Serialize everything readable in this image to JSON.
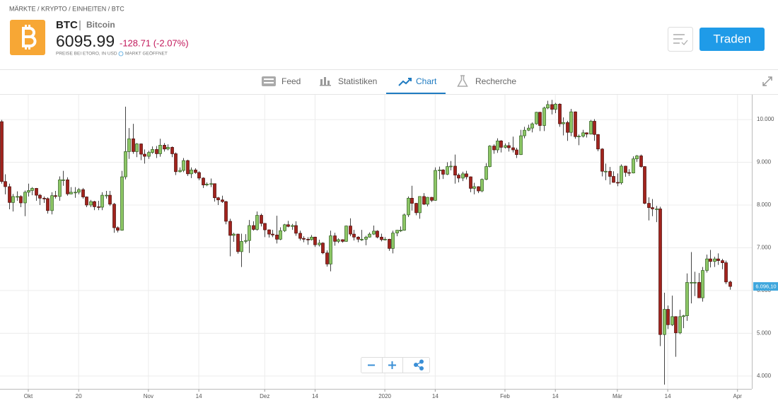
{
  "breadcrumb": "MÄRKTE / KRYPTO / EINHEITEN / BTC",
  "header": {
    "symbol": "BTC",
    "name": "Bitcoin",
    "price": "6095.99",
    "change": "-128.71 (-2.07%)",
    "price_note": "PREISE BEI ETORO, IN USD",
    "market_status": "MARKT GEÖFFNET",
    "trade_button": "Traden"
  },
  "tabs": [
    "Feed",
    "Statistiken",
    "Chart",
    "Recherche"
  ],
  "active_tab": 2,
  "chart_data": {
    "type": "candlestick",
    "candles": [
      [
        9950,
        9990,
        8500,
        8550
      ],
      [
        8550,
        8720,
        8250,
        8430
      ],
      [
        8430,
        8500,
        7900,
        8060
      ],
      [
        8060,
        8260,
        7850,
        8200
      ],
      [
        8200,
        8320,
        8100,
        8200
      ],
      [
        8200,
        8230,
        7950,
        8050
      ],
      [
        8050,
        8340,
        7740,
        8300
      ],
      [
        8300,
        8500,
        8200,
        8340
      ],
      [
        8340,
        8420,
        8230,
        8390
      ],
      [
        8390,
        8400,
        8100,
        8230
      ],
      [
        8230,
        8260,
        8000,
        8160
      ],
      [
        8160,
        8200,
        8050,
        8150
      ],
      [
        8150,
        8180,
        7800,
        7870
      ],
      [
        7870,
        8300,
        7780,
        8220
      ],
      [
        8220,
        8330,
        8150,
        8200
      ],
      [
        8200,
        8670,
        8100,
        8590
      ],
      [
        8590,
        8800,
        8450,
        8590
      ],
      [
        8590,
        8650,
        8220,
        8260
      ],
      [
        8260,
        8420,
        8250,
        8300
      ],
      [
        8300,
        8420,
        8170,
        8300
      ],
      [
        8300,
        8400,
        8250,
        8360
      ],
      [
        8360,
        8400,
        8150,
        8190
      ],
      [
        8190,
        8200,
        7950,
        8000
      ],
      [
        8000,
        8120,
        7950,
        8080
      ],
      [
        8080,
        8100,
        7880,
        7960
      ],
      [
        7960,
        8100,
        7880,
        7950
      ],
      [
        7950,
        8300,
        7880,
        8230
      ],
      [
        8230,
        8330,
        8150,
        8230
      ],
      [
        8230,
        8330,
        7980,
        8020
      ],
      [
        8020,
        8050,
        7350,
        7470
      ],
      [
        7470,
        7500,
        7360,
        7410
      ],
      [
        7410,
        8800,
        7400,
        8660
      ],
      [
        8660,
        10300,
        8600,
        9250
      ],
      [
        9250,
        9800,
        9080,
        9550
      ],
      [
        9550,
        9900,
        9200,
        9250
      ],
      [
        9250,
        9450,
        9120,
        9430
      ],
      [
        9430,
        9440,
        9050,
        9190
      ],
      [
        9190,
        9300,
        8970,
        9140
      ],
      [
        9140,
        9270,
        9080,
        9230
      ],
      [
        9230,
        9370,
        9200,
        9300
      ],
      [
        9300,
        9380,
        9100,
        9200
      ],
      [
        9200,
        9550,
        9130,
        9400
      ],
      [
        9400,
        9450,
        9250,
        9310
      ],
      [
        9310,
        9420,
        9280,
        9350
      ],
      [
        9350,
        9370,
        9120,
        9200
      ],
      [
        9200,
        9230,
        8700,
        8780
      ],
      [
        8780,
        8880,
        8760,
        8810
      ],
      [
        8810,
        9100,
        8770,
        9040
      ],
      [
        9040,
        9060,
        8680,
        8730
      ],
      [
        8730,
        8880,
        8630,
        8820
      ],
      [
        8820,
        8860,
        8730,
        8760
      ],
      [
        8760,
        8790,
        8580,
        8630
      ],
      [
        8630,
        8650,
        8400,
        8470
      ],
      [
        8470,
        8530,
        8440,
        8490
      ],
      [
        8490,
        8620,
        8420,
        8500
      ],
      [
        8500,
        8500,
        8080,
        8170
      ],
      [
        8170,
        8190,
        8000,
        8120
      ],
      [
        8120,
        8220,
        8050,
        8080
      ],
      [
        8080,
        8100,
        7550,
        7620
      ],
      [
        7620,
        7680,
        6800,
        7290
      ],
      [
        7290,
        7350,
        7140,
        7320
      ],
      [
        7320,
        7330,
        6860,
        6910
      ],
      [
        6910,
        7330,
        6550,
        7150
      ],
      [
        7150,
        7320,
        7100,
        7170
      ],
      [
        7170,
        7650,
        6880,
        7520
      ],
      [
        7520,
        7620,
        7400,
        7430
      ],
      [
        7430,
        7850,
        7400,
        7760
      ],
      [
        7760,
        7800,
        7500,
        7570
      ],
      [
        7570,
        7580,
        7250,
        7420
      ],
      [
        7420,
        7430,
        7240,
        7320
      ],
      [
        7320,
        7420,
        7250,
        7300
      ],
      [
        7300,
        7750,
        7100,
        7200
      ],
      [
        7200,
        7480,
        7180,
        7400
      ],
      [
        7400,
        7560,
        7370,
        7540
      ],
      [
        7540,
        7630,
        7480,
        7500
      ],
      [
        7500,
        7560,
        7420,
        7520
      ],
      [
        7520,
        7620,
        7280,
        7340
      ],
      [
        7340,
        7400,
        7170,
        7220
      ],
      [
        7220,
        7270,
        7130,
        7200
      ],
      [
        7200,
        7250,
        7070,
        7190
      ],
      [
        7190,
        7300,
        7170,
        7250
      ],
      [
        7250,
        7260,
        7020,
        7070
      ],
      [
        7070,
        7190,
        7030,
        7110
      ],
      [
        7110,
        7130,
        6850,
        6880
      ],
      [
        6880,
        6940,
        6560,
        6620
      ],
      [
        6620,
        7400,
        6450,
        7280
      ],
      [
        7280,
        7350,
        7050,
        7150
      ],
      [
        7150,
        7220,
        7110,
        7190
      ],
      [
        7190,
        7200,
        7120,
        7150
      ],
      [
        7150,
        7520,
        7140,
        7510
      ],
      [
        7510,
        7690,
        7270,
        7320
      ],
      [
        7320,
        7420,
        7170,
        7250
      ],
      [
        7250,
        7270,
        7130,
        7200
      ],
      [
        7200,
        7420,
        7160,
        7200
      ],
      [
        7200,
        7280,
        7060,
        7250
      ],
      [
        7250,
        7360,
        7240,
        7320
      ],
      [
        7320,
        7520,
        7300,
        7390
      ],
      [
        7390,
        7410,
        7220,
        7250
      ],
      [
        7250,
        7330,
        7150,
        7190
      ],
      [
        7190,
        7250,
        7170,
        7200
      ],
      [
        7200,
        7210,
        6930,
        6985
      ],
      [
        6985,
        7400,
        6870,
        7345
      ],
      [
        7345,
        7420,
        7270,
        7410
      ],
      [
        7410,
        7500,
        7370,
        7410
      ],
      [
        7410,
        7800,
        7400,
        7770
      ],
      [
        7770,
        8200,
        7720,
        8160
      ],
      [
        8160,
        8450,
        7870,
        8040
      ],
      [
        8040,
        8050,
        7760,
        7820
      ],
      [
        7820,
        8200,
        7680,
        8200
      ],
      [
        8200,
        8280,
        8000,
        8020
      ],
      [
        8020,
        8190,
        7970,
        8180
      ],
      [
        8180,
        8190,
        8070,
        8110
      ],
      [
        8110,
        8880,
        8100,
        8810
      ],
      [
        8810,
        8900,
        8600,
        8820
      ],
      [
        8820,
        8840,
        8610,
        8720
      ],
      [
        8720,
        9000,
        8700,
        8900
      ],
      [
        8900,
        9030,
        8810,
        8910
      ],
      [
        8910,
        9180,
        8500,
        8700
      ],
      [
        8700,
        8740,
        8530,
        8630
      ],
      [
        8630,
        8780,
        8560,
        8730
      ],
      [
        8730,
        8800,
        8600,
        8660
      ],
      [
        8660,
        8670,
        8300,
        8390
      ],
      [
        8390,
        8520,
        8250,
        8430
      ],
      [
        8430,
        8440,
        8280,
        8330
      ],
      [
        8330,
        8620,
        8300,
        8600
      ],
      [
        8600,
        8980,
        8580,
        8900
      ],
      [
        8900,
        9400,
        8880,
        9380
      ],
      [
        9380,
        9420,
        9200,
        9290
      ],
      [
        9290,
        9560,
        9220,
        9500
      ],
      [
        9500,
        9520,
        9230,
        9350
      ],
      [
        9350,
        9440,
        9320,
        9390
      ],
      [
        9390,
        9470,
        9250,
        9340
      ],
      [
        9340,
        9600,
        9230,
        9290
      ],
      [
        9290,
        9340,
        9100,
        9180
      ],
      [
        9180,
        9760,
        9170,
        9620
      ],
      [
        9620,
        9830,
        9560,
        9750
      ],
      [
        9750,
        9880,
        9730,
        9800
      ],
      [
        9800,
        9930,
        9700,
        9900
      ],
      [
        9900,
        10180,
        9880,
        10170
      ],
      [
        10170,
        10180,
        9730,
        9860
      ],
      [
        9860,
        10300,
        9730,
        10270
      ],
      [
        10270,
        10440,
        10240,
        10350
      ],
      [
        10350,
        10460,
        10120,
        10240
      ],
      [
        10240,
        10390,
        10150,
        10360
      ],
      [
        10360,
        10380,
        9830,
        9900
      ],
      [
        9900,
        10050,
        9630,
        9930
      ],
      [
        9930,
        9970,
        9500,
        9700
      ],
      [
        9700,
        10250,
        9610,
        10180
      ],
      [
        10180,
        10190,
        9550,
        9600
      ],
      [
        9600,
        9650,
        9400,
        9610
      ],
      [
        9610,
        9760,
        9580,
        9690
      ],
      [
        9690,
        9700,
        9580,
        9660
      ],
      [
        9660,
        9990,
        9650,
        9960
      ],
      [
        9960,
        10010,
        9500,
        9650
      ],
      [
        9650,
        9660,
        9260,
        9310
      ],
      [
        9310,
        9330,
        8670,
        8790
      ],
      [
        8790,
        8970,
        8580,
        8790
      ],
      [
        8790,
        8890,
        8480,
        8670
      ],
      [
        8670,
        8790,
        8520,
        8530
      ],
      [
        8530,
        8740,
        8440,
        8520
      ],
      [
        8520,
        8950,
        8480,
        8910
      ],
      [
        8910,
        8920,
        8660,
        8760
      ],
      [
        8760,
        8840,
        8680,
        8750
      ],
      [
        8750,
        9140,
        8740,
        9080
      ],
      [
        9080,
        9170,
        9010,
        9150
      ],
      [
        9150,
        9180,
        8870,
        8900
      ],
      [
        8900,
        8910,
        8020,
        8040
      ],
      [
        8040,
        8180,
        7640,
        7940
      ],
      [
        7940,
        8140,
        7740,
        7910
      ],
      [
        7910,
        7980,
        7600,
        7910
      ],
      [
        7910,
        7960,
        4700,
        4970
      ],
      [
        4970,
        5950,
        3800,
        5560
      ],
      [
        5560,
        5650,
        5100,
        5200
      ],
      [
        5200,
        5880,
        5170,
        5390
      ],
      [
        5390,
        5400,
        4450,
        5010
      ],
      [
        5010,
        5550,
        4980,
        5390
      ],
      [
        5390,
        5430,
        5120,
        5410
      ],
      [
        5410,
        6400,
        5290,
        6190
      ],
      [
        6190,
        6900,
        5700,
        6190
      ],
      [
        6190,
        6440,
        5870,
        6190
      ],
      [
        6190,
        6410,
        5830,
        5830
      ],
      [
        5830,
        6550,
        5740,
        6470
      ],
      [
        6470,
        6840,
        6420,
        6740
      ],
      [
        6740,
        6950,
        6540,
        6680
      ],
      [
        6680,
        6790,
        6550,
        6740
      ],
      [
        6740,
        6870,
        6600,
        6700
      ],
      [
        6700,
        6740,
        6500,
        6650
      ],
      [
        6650,
        6700,
        6150,
        6200
      ],
      [
        6200,
        6230,
        6020,
        6096.1
      ]
    ],
    "xlim": [
      -0.3,
      193.7
    ],
    "xticks": [
      {
        "value": 7,
        "label": "Okt"
      },
      20,
      {
        "value": 38,
        "label": "Nov"
      },
      {
        "value": 51,
        "label": "14"
      },
      {
        "value": 68,
        "label": "Dez"
      },
      {
        "value": 81,
        "label": "14"
      },
      {
        "value": 99,
        "label": "2020"
      },
      {
        "value": 112,
        "label": "14"
      },
      {
        "value": 130,
        "label": "Feb"
      },
      {
        "value": 143,
        "label": "14"
      },
      {
        "value": 159,
        "label": "Mär"
      },
      {
        "value": 172,
        "label": "14"
      },
      {
        "value": 190,
        "label": "Apr"
      }
    ],
    "ylim": [
      3700,
      10580
    ],
    "yticks": [
      {
        "value": 4000,
        "label": "4.000"
      },
      {
        "value": 5000,
        "label": "5.000"
      },
      {
        "value": 6000,
        "label": "6.000"
      },
      {
        "value": 7000,
        "label": "7.000"
      },
      {
        "value": 8000,
        "label": "8.000"
      },
      {
        "value": 9000,
        "label": "9.000"
      },
      {
        "value": 10000,
        "label": "10.000"
      }
    ],
    "grid": true,
    "up_color": "#8cc665",
    "down_color": "#a1231d",
    "last_price": {
      "value": 6096.1,
      "label": "6.096,10"
    }
  }
}
